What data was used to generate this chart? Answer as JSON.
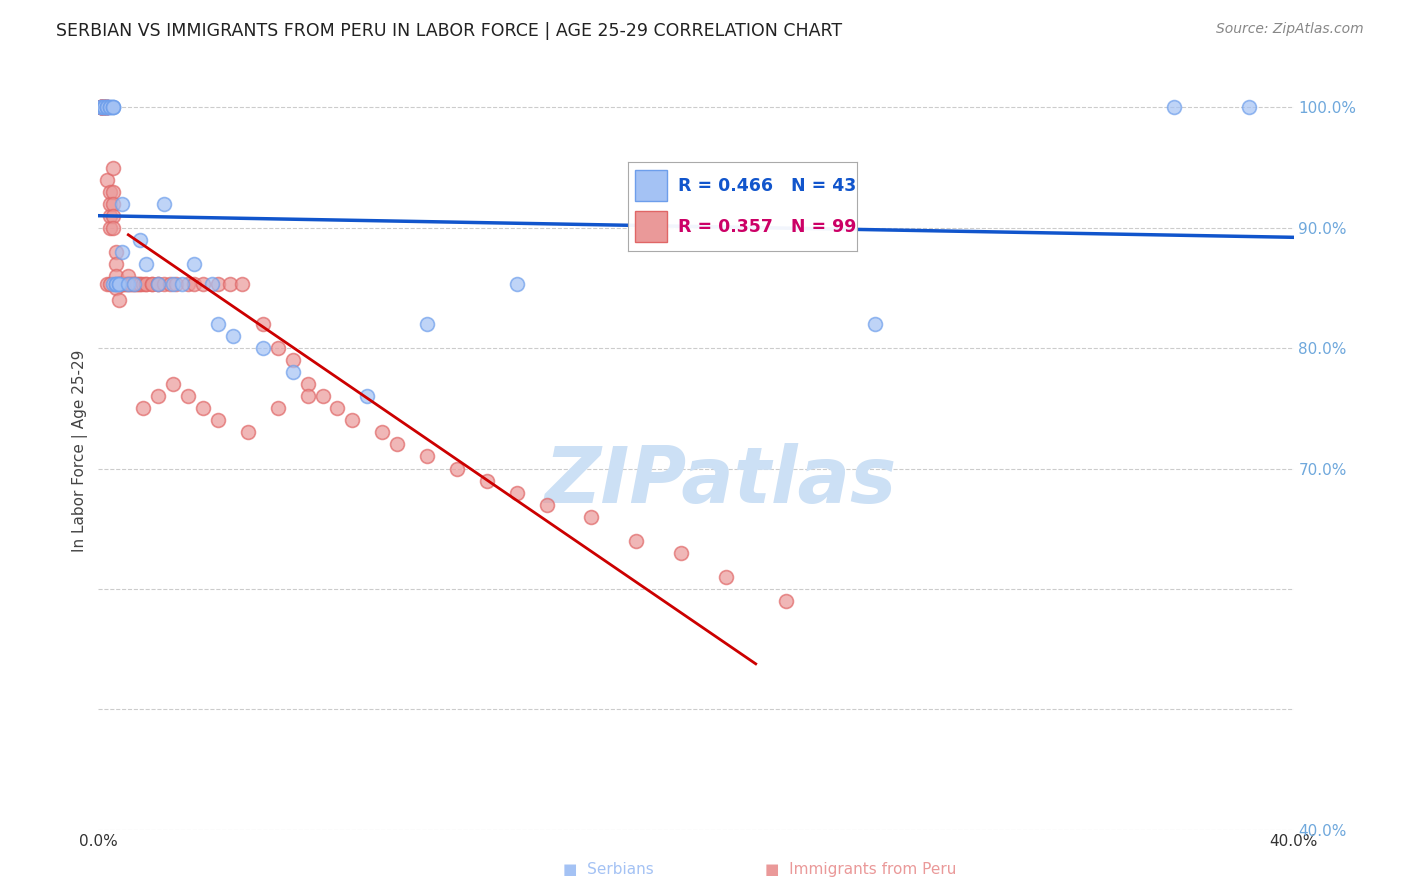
{
  "title": "SERBIAN VS IMMIGRANTS FROM PERU IN LABOR FORCE | AGE 25-29 CORRELATION CHART",
  "source": "Source: ZipAtlas.com",
  "ylabel": "In Labor Force | Age 25-29",
  "xlim": [
    0.0,
    0.4
  ],
  "ylim": [
    0.4,
    1.03
  ],
  "x_tick_positions": [
    0.0,
    0.05,
    0.1,
    0.15,
    0.2,
    0.25,
    0.3,
    0.35,
    0.4
  ],
  "x_tick_labels": [
    "0.0%",
    "",
    "",
    "",
    "",
    "",
    "",
    "",
    "40.0%"
  ],
  "y_tick_positions": [
    0.4,
    0.5,
    0.6,
    0.7,
    0.8,
    0.9,
    1.0
  ],
  "y_tick_labels_right": [
    "40.0%",
    "",
    "",
    "70.0%",
    "80.0%",
    "90.0%",
    "100.0%"
  ],
  "serbian_R": 0.466,
  "serbian_N": 43,
  "peru_R": 0.357,
  "peru_N": 99,
  "serbian_color": "#a4c2f4",
  "serbian_edge_color": "#6d9eeb",
  "peru_color": "#ea9999",
  "peru_edge_color": "#e06666",
  "serbian_line_color": "#1155cc",
  "peru_line_color": "#cc0000",
  "watermark_color": "#cce0f5",
  "legend_serbian": "Serbians",
  "legend_peru": "Immigrants from Peru",
  "serbian_x": [
    0.001,
    0.001,
    0.002,
    0.002,
    0.002,
    0.003,
    0.003,
    0.003,
    0.003,
    0.004,
    0.004,
    0.004,
    0.005,
    0.005,
    0.005,
    0.005,
    0.006,
    0.006,
    0.006,
    0.007,
    0.007,
    0.008,
    0.008,
    0.01,
    0.012,
    0.014,
    0.016,
    0.02,
    0.022,
    0.025,
    0.028,
    0.032,
    0.038,
    0.04,
    0.045,
    0.055,
    0.065,
    0.09,
    0.11,
    0.14,
    0.26,
    0.36,
    0.385
  ],
  "serbian_y": [
    1.0,
    1.0,
    1.0,
    1.0,
    1.0,
    1.0,
    1.0,
    1.0,
    1.0,
    1.0,
    1.0,
    1.0,
    1.0,
    1.0,
    1.0,
    0.853,
    0.853,
    0.853,
    0.853,
    0.853,
    0.853,
    0.92,
    0.88,
    0.853,
    0.853,
    0.89,
    0.87,
    0.853,
    0.92,
    0.853,
    0.853,
    0.87,
    0.853,
    0.82,
    0.81,
    0.8,
    0.78,
    0.76,
    0.82,
    0.853,
    0.82,
    1.0,
    1.0
  ],
  "peru_x": [
    0.001,
    0.001,
    0.001,
    0.001,
    0.001,
    0.001,
    0.001,
    0.001,
    0.002,
    0.002,
    0.002,
    0.002,
    0.002,
    0.002,
    0.002,
    0.003,
    0.003,
    0.003,
    0.003,
    0.003,
    0.003,
    0.003,
    0.004,
    0.004,
    0.004,
    0.004,
    0.004,
    0.005,
    0.005,
    0.005,
    0.005,
    0.005,
    0.006,
    0.006,
    0.006,
    0.006,
    0.007,
    0.007,
    0.007,
    0.008,
    0.008,
    0.008,
    0.009,
    0.009,
    0.01,
    0.01,
    0.01,
    0.011,
    0.011,
    0.012,
    0.012,
    0.013,
    0.013,
    0.014,
    0.014,
    0.015,
    0.016,
    0.016,
    0.018,
    0.018,
    0.02,
    0.02,
    0.022,
    0.024,
    0.026,
    0.03,
    0.032,
    0.035,
    0.04,
    0.044,
    0.048,
    0.055,
    0.06,
    0.065,
    0.07,
    0.075,
    0.08,
    0.085,
    0.095,
    0.1,
    0.11,
    0.12,
    0.13,
    0.14,
    0.15,
    0.165,
    0.18,
    0.195,
    0.21,
    0.23,
    0.015,
    0.02,
    0.025,
    0.03,
    0.035,
    0.04,
    0.05,
    0.06,
    0.07
  ],
  "peru_y": [
    1.0,
    1.0,
    1.0,
    1.0,
    1.0,
    1.0,
    1.0,
    1.0,
    1.0,
    1.0,
    1.0,
    1.0,
    1.0,
    1.0,
    1.0,
    1.0,
    1.0,
    1.0,
    1.0,
    1.0,
    0.94,
    0.853,
    0.93,
    0.91,
    0.92,
    0.9,
    0.853,
    0.95,
    0.93,
    0.92,
    0.91,
    0.9,
    0.88,
    0.87,
    0.86,
    0.85,
    0.84,
    0.853,
    0.853,
    0.853,
    0.853,
    0.853,
    0.853,
    0.853,
    0.853,
    0.86,
    0.853,
    0.853,
    0.853,
    0.853,
    0.853,
    0.853,
    0.853,
    0.853,
    0.853,
    0.853,
    0.853,
    0.853,
    0.853,
    0.853,
    0.853,
    0.853,
    0.853,
    0.853,
    0.853,
    0.853,
    0.853,
    0.853,
    0.853,
    0.853,
    0.853,
    0.82,
    0.8,
    0.79,
    0.77,
    0.76,
    0.75,
    0.74,
    0.73,
    0.72,
    0.71,
    0.7,
    0.69,
    0.68,
    0.67,
    0.66,
    0.64,
    0.63,
    0.61,
    0.59,
    0.75,
    0.76,
    0.77,
    0.76,
    0.75,
    0.74,
    0.73,
    0.75,
    0.76
  ]
}
